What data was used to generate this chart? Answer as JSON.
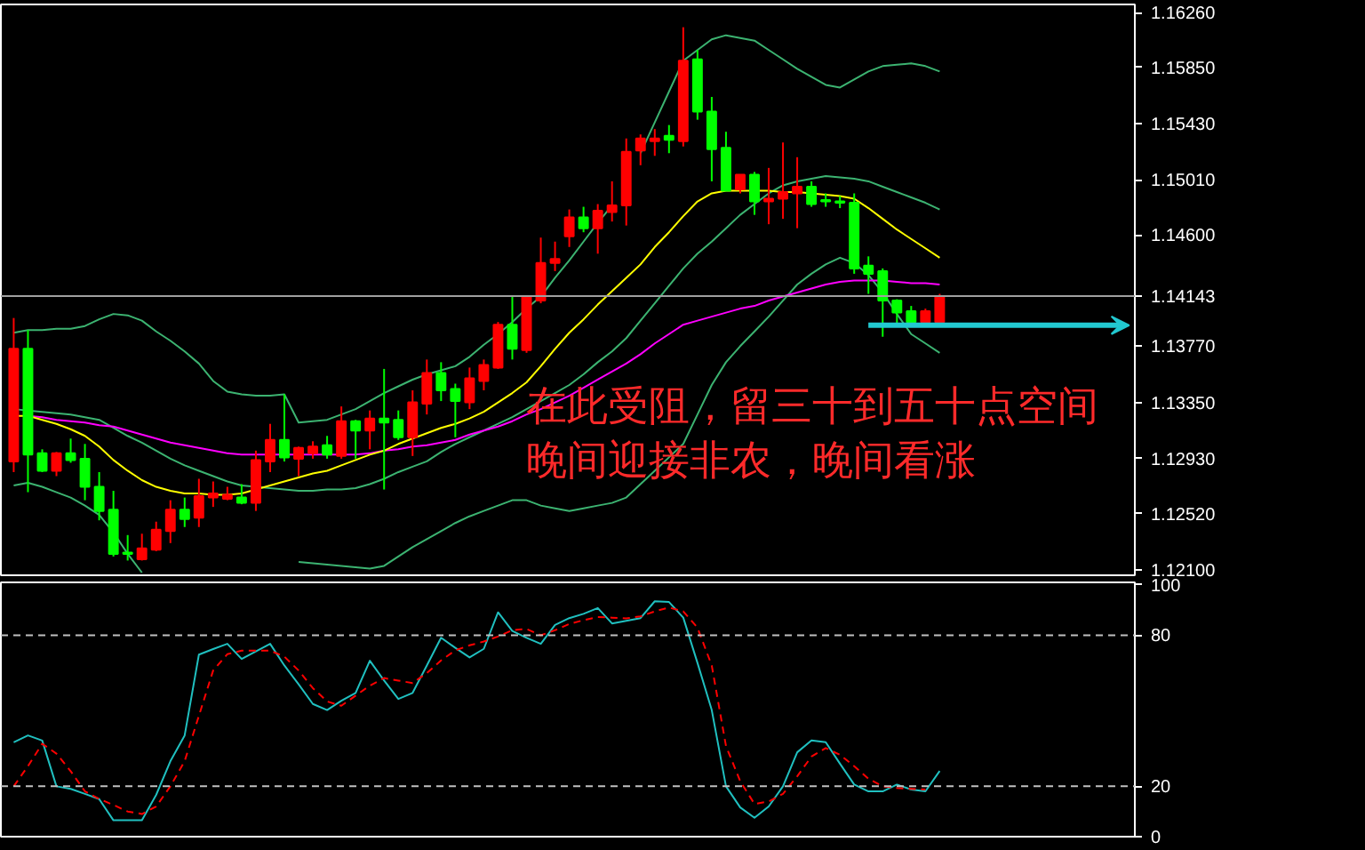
{
  "chart_data": [
    {
      "type": "candlestick",
      "categories": [
        null,
        null,
        null,
        null,
        null,
        null,
        null,
        null,
        null,
        null,
        null,
        null,
        null,
        null,
        null,
        null,
        null,
        null,
        null,
        null,
        null,
        null,
        null,
        null,
        null,
        null,
        null,
        null,
        null,
        null,
        null,
        null,
        null,
        null,
        null,
        null,
        null,
        null,
        null,
        null,
        null,
        null,
        null,
        null,
        null,
        null,
        null,
        null,
        null,
        null,
        null,
        null,
        null,
        null,
        null,
        null,
        null,
        null,
        null,
        null,
        null,
        null,
        null,
        null,
        null,
        null,
        null,
        null,
        null,
        null,
        null,
        null,
        null,
        null,
        null,
        null,
        null,
        null,
        null
      ],
      "ohlc": [
        [
          1.1291,
          1.1398,
          1.1283,
          1.1375
        ],
        [
          1.1375,
          1.1389,
          1.1268,
          1.1296
        ],
        [
          1.1297,
          1.13,
          1.1283,
          1.1284
        ],
        [
          1.1284,
          1.1298,
          1.128,
          1.1297
        ],
        [
          1.1297,
          1.1308,
          1.129,
          1.1292
        ],
        [
          1.1293,
          1.1304,
          1.1262,
          1.1272
        ],
        [
          1.1272,
          1.1283,
          1.1247,
          1.1254
        ],
        [
          1.1255,
          1.1269,
          1.122,
          1.1222
        ],
        [
          1.1223,
          1.1236,
          1.1217,
          1.1222
        ],
        [
          1.1218,
          1.1237,
          1.1217,
          1.1226
        ],
        [
          1.1225,
          1.1246,
          1.1224,
          1.124
        ],
        [
          1.1239,
          1.1262,
          1.123,
          1.1255
        ],
        [
          1.1255,
          1.1264,
          1.1242,
          1.1248
        ],
        [
          1.1249,
          1.1278,
          1.1242,
          1.1265
        ],
        [
          1.1264,
          1.1276,
          1.1257,
          1.1267
        ],
        [
          1.1263,
          1.1272,
          1.1262,
          1.1266
        ],
        [
          1.1264,
          1.1274,
          1.1259,
          1.126
        ],
        [
          1.126,
          1.1299,
          1.1254,
          1.1292
        ],
        [
          1.1291,
          1.1319,
          1.1283,
          1.1307
        ],
        [
          1.1307,
          1.1341,
          1.1291,
          1.1294
        ],
        [
          1.1293,
          1.1302,
          1.128,
          1.1301
        ],
        [
          1.1297,
          1.1306,
          1.1293,
          1.1302
        ],
        [
          1.1303,
          1.131,
          1.1293,
          1.1296
        ],
        [
          1.1295,
          1.1332,
          1.1293,
          1.1321
        ],
        [
          1.1321,
          1.1322,
          1.1293,
          1.1314
        ],
        [
          1.1314,
          1.1329,
          1.13,
          1.1323
        ],
        [
          1.1323,
          1.136,
          1.127,
          1.132
        ],
        [
          1.1322,
          1.1329,
          1.1307,
          1.1309
        ],
        [
          1.1309,
          1.1344,
          1.1295,
          1.1335
        ],
        [
          1.1334,
          1.1367,
          1.1326,
          1.1357
        ],
        [
          1.1357,
          1.1365,
          1.1336,
          1.1344
        ],
        [
          1.1345,
          1.1349,
          1.1309,
          1.1336
        ],
        [
          1.1335,
          1.1361,
          1.133,
          1.1353
        ],
        [
          1.1351,
          1.1367,
          1.1344,
          1.1363
        ],
        [
          1.1361,
          1.1395,
          1.136,
          1.1393
        ],
        [
          1.1393,
          1.1414,
          1.1367,
          1.1375
        ],
        [
          1.1374,
          1.1415,
          1.1372,
          1.1414
        ],
        [
          1.1411,
          1.1458,
          1.1409,
          1.1439
        ],
        [
          1.1439,
          1.1455,
          1.1433,
          1.1442
        ],
        [
          1.1459,
          1.1479,
          1.1451,
          1.1473
        ],
        [
          1.1473,
          1.1481,
          1.1462,
          1.1465
        ],
        [
          1.1465,
          1.1483,
          1.1446,
          1.1478
        ],
        [
          1.1477,
          1.15,
          1.147,
          1.1482
        ],
        [
          1.1482,
          1.1532,
          1.1467,
          1.1522
        ],
        [
          1.1523,
          1.1535,
          1.1512,
          1.1532
        ],
        [
          1.153,
          1.1539,
          1.1519,
          1.1532
        ],
        [
          1.1534,
          1.1542,
          1.1521,
          1.1531
        ],
        [
          1.153,
          1.1615,
          1.1526,
          1.159
        ],
        [
          1.1591,
          1.1598,
          1.1546,
          1.1552
        ],
        [
          1.1552,
          1.1563,
          1.15,
          1.1524
        ],
        [
          1.1525,
          1.1537,
          1.1493,
          1.1493
        ],
        [
          1.1494,
          1.1505,
          1.1491,
          1.1505
        ],
        [
          1.1505,
          1.1507,
          1.1475,
          1.1485
        ],
        [
          1.1485,
          1.151,
          1.1468,
          1.1487
        ],
        [
          1.1487,
          1.1529,
          1.1472,
          1.1492
        ],
        [
          1.1491,
          1.1518,
          1.1465,
          1.1496
        ],
        [
          1.1496,
          1.15,
          1.1481,
          1.1483
        ],
        [
          1.1486,
          1.1491,
          1.1481,
          1.1485
        ],
        [
          1.1485,
          1.1489,
          1.148,
          1.1484
        ],
        [
          1.1484,
          1.1491,
          1.1431,
          1.1435
        ],
        [
          1.1437,
          1.1444,
          1.1416,
          1.1431
        ],
        [
          1.1433,
          1.1435,
          1.1384,
          1.1411
        ],
        [
          1.1411,
          1.1412,
          1.1393,
          1.1402
        ],
        [
          1.1403,
          1.1407,
          1.1392,
          1.1395
        ],
        [
          1.1395,
          1.1405,
          1.1394,
          1.1403
        ],
        [
          1.1395,
          1.1416,
          1.1394,
          1.1414
        ],
        null,
        null,
        null,
        null,
        null,
        null,
        null,
        null,
        null,
        null,
        null,
        null,
        null
      ],
      "colors": [
        "#ff0000",
        "#00ff00",
        "#00ff00",
        "#ff0000",
        "#00ff00",
        "#00ff00",
        "#00ff00",
        "#00ff00",
        "#00ff00",
        "#ff0000",
        "#ff0000",
        "#ff0000",
        "#00ff00",
        "#ff0000",
        "#ff0000",
        "#ff0000",
        "#00ff00",
        "#ff0000",
        "#ff0000",
        "#00ff00",
        "#ff0000",
        "#ff0000",
        "#00ff00",
        "#ff0000",
        "#00ff00",
        "#ff0000",
        "#00ff00",
        "#00ff00",
        "#ff0000",
        "#ff0000",
        "#00ff00",
        "#00ff00",
        "#ff0000",
        "#ff0000",
        "#ff0000",
        "#00ff00",
        "#ff0000",
        "#ff0000",
        "#ff0000",
        "#ff0000",
        "#00ff00",
        "#ff0000",
        "#ff0000",
        "#ff0000",
        "#ff0000",
        "#ff0000",
        "#00ff00",
        "#ff0000",
        "#00ff00",
        "#00ff00",
        "#00ff00",
        "#ff0000",
        "#00ff00",
        "#ff0000",
        "#ff0000",
        "#ff0000",
        "#00ff00",
        "#00ff00",
        "#00ff00",
        "#00ff00",
        "#00ff00",
        "#00ff00",
        "#00ff00",
        "#00ff00",
        "#ff0000",
        "#ff0000",
        null,
        null,
        null,
        null,
        null,
        null,
        null,
        null,
        null,
        null,
        null,
        null,
        null
      ],
      "series": [
        {
          "type": "line",
          "color": "#3cb371",
          "values": [
            1.1387,
            1.1389,
            1.1389,
            1.139,
            1.139,
            1.1392,
            1.1397,
            1.1401,
            1.14,
            1.1396,
            1.1388,
            1.1381,
            1.1373,
            1.1364,
            1.1351,
            1.1343,
            1.1341,
            1.134,
            1.134,
            1.1341,
            1.132,
            1.1321,
            1.1322,
            1.1326,
            1.133,
            1.1336,
            1.1342,
            1.1347,
            1.1352,
            1.1356,
            1.1359,
            1.1362,
            1.1369,
            1.1378,
            1.1386,
            1.1395,
            1.1405,
            1.1414,
            1.1428,
            1.1441,
            1.1455,
            1.1469,
            1.1482,
            null,
            1.1521,
            1.1544,
            1.1567,
            1.159,
            1.1598,
            1.1606,
            1.1609,
            1.1607,
            1.1605,
            1.1598,
            1.1591,
            1.1584,
            1.1578,
            1.1572,
            1.157,
            1.1576,
            1.1582,
            1.1586,
            1.1587,
            1.1588,
            1.1586,
            1.1582,
            null,
            null,
            null,
            null,
            null,
            null,
            null,
            null,
            null,
            null,
            null,
            null,
            null
          ]
        },
        {
          "type": "line",
          "color": "#3cb371",
          "values": [
            1.133,
            1.1329,
            1.1328,
            1.1327,
            1.1326,
            1.1324,
            1.1322,
            1.1316,
            1.131,
            1.1305,
            1.1299,
            1.1293,
            1.1288,
            1.1284,
            1.128,
            1.1276,
            1.1273,
            1.1272,
            1.1271,
            1.127,
            1.1269,
            1.1269,
            1.127,
            1.127,
            1.1271,
            1.1274,
            1.1278,
            1.1283,
            1.1287,
            1.1291,
            1.1298,
            1.1304,
            1.1309,
            1.1314,
            1.1319,
            1.1324,
            1.133,
            1.1336,
            1.1342,
            1.1348,
            1.1356,
            1.1365,
            1.1373,
            1.1383,
            1.1396,
            1.1409,
            1.1422,
            1.1435,
            1.1446,
            1.1455,
            1.1465,
            1.1475,
            1.1483,
            1.1491,
            1.1497,
            1.15,
            1.1502,
            1.1504,
            1.1503,
            1.1502,
            1.15,
            1.1496,
            1.1492,
            1.1488,
            1.1484,
            1.1479,
            null,
            null,
            null,
            null,
            null,
            null,
            null,
            null,
            null,
            null,
            null,
            null,
            null
          ]
        },
        {
          "type": "line",
          "color": "#3cb371",
          "values": [
            1.1273,
            1.1275,
            1.1272,
            1.1268,
            1.1264,
            1.1258,
            1.1251,
            1.1238,
            1.1222,
            1.1208,
            null,
            null,
            null,
            null,
            null,
            null,
            null,
            null,
            null,
            null,
            1.1216,
            1.1215,
            1.1214,
            1.1213,
            1.1212,
            1.1211,
            1.1213,
            1.122,
            1.1227,
            1.1233,
            1.1239,
            1.1245,
            1.125,
            1.1254,
            1.1258,
            1.1262,
            1.1262,
            1.1258,
            1.1256,
            1.1254,
            1.1256,
            1.1258,
            1.126,
            1.1264,
            1.1274,
            1.1284,
            1.1294,
            1.1304,
            1.1326,
            1.1348,
            1.1365,
            1.1377,
            1.1388,
            1.1399,
            1.1411,
            1.1423,
            1.1431,
            1.1438,
            1.1443,
            1.1439,
            1.143,
            1.1417,
            1.1401,
            1.1386,
            1.1379,
            1.1372,
            null,
            null,
            null,
            null,
            null,
            null,
            null,
            null,
            null,
            null,
            null,
            null,
            null
          ]
        },
        {
          "type": "line",
          "color": "#ff00ff",
          "values": [
            null,
            1.1325,
            1.1324,
            1.1322,
            1.1321,
            1.132,
            1.1318,
            1.1317,
            1.1314,
            1.1311,
            1.1308,
            1.1305,
            1.1303,
            1.1301,
            1.1299,
            1.1297,
            1.1296,
            1.1296,
            1.1296,
            1.1296,
            1.1296,
            1.1296,
            1.1296,
            1.1296,
            1.1296,
            1.1297,
            1.1299,
            1.13,
            1.1302,
            1.1303,
            1.1305,
            1.1307,
            1.1311,
            1.1314,
            1.1317,
            1.1321,
            1.1326,
            1.133,
            1.1335,
            1.134,
            1.1346,
            1.1352,
            1.1358,
            1.1364,
            1.1371,
            1.1379,
            1.1386,
            1.1393,
            1.1396,
            1.1399,
            1.1402,
            1.1405,
            1.1407,
            1.1411,
            1.1414,
            1.1417,
            1.142,
            1.1423,
            1.1425,
            1.1426,
            1.1426,
            1.1426,
            1.1425,
            1.1424,
            1.1424,
            1.1423,
            null,
            null,
            null,
            null,
            null,
            null,
            null,
            null,
            null,
            null,
            null,
            null,
            null
          ]
        },
        {
          "type": "line",
          "color": "#ffff00",
          "values": [
            1.1325,
            1.1325,
            1.1322,
            1.1319,
            1.1315,
            1.131,
            1.1302,
            1.1292,
            1.1284,
            1.1277,
            1.1272,
            1.1269,
            1.1267,
            1.1267,
            1.1266,
            1.1266,
            1.1267,
            1.127,
            1.1273,
            1.1276,
            1.1279,
            1.1282,
            1.1284,
            1.1288,
            1.1292,
            1.1296,
            1.1299,
            1.1304,
            1.1308,
            1.1312,
            1.1316,
            1.1319,
            1.1323,
            1.1328,
            1.1335,
            1.1342,
            1.135,
            1.1362,
            1.1375,
            1.1387,
            1.1397,
            1.1408,
            1.1418,
            1.1428,
            1.1438,
            1.1451,
            1.1462,
            1.1474,
            1.1485,
            1.1491,
            1.1493,
            1.1493,
            1.1493,
            1.1493,
            1.1492,
            1.1492,
            1.1491,
            1.149,
            1.1489,
            1.1487,
            1.148,
            1.1472,
            1.1464,
            1.1457,
            1.145,
            1.1443,
            null,
            null,
            null,
            null,
            null,
            null,
            null,
            null,
            null,
            null,
            null,
            null,
            null
          ]
        }
      ],
      "ylim": [
        1.1206,
        1.1632
      ],
      "yticks": [
        {
          "value": 1.1626,
          "label": "1.16260"
        },
        {
          "value": 1.1585,
          "label": "1.15850"
        },
        {
          "value": 1.1543,
          "label": "1.15430"
        },
        {
          "value": 1.1501,
          "label": "1.15010"
        },
        {
          "value": 1.146,
          "label": "1.14600"
        },
        {
          "value": 1.1377,
          "label": "1.13770"
        },
        {
          "value": 1.1335,
          "label": "1.13350"
        },
        {
          "value": 1.1293,
          "label": "1.12930"
        },
        {
          "value": 1.1252,
          "label": "1.12520"
        },
        {
          "value": 1.121,
          "label": "1.12100"
        }
      ],
      "tick_labels": "y",
      "ref_lines": [
        {
          "axis": "y",
          "value": 1.14143,
          "label": "1.14143",
          "color": "#a0a0a0"
        }
      ],
      "annotations": [
        "在此受阻，留三十到五十点空间",
        "晚间迎接非农，晚间看涨"
      ]
    },
    {
      "type": "line",
      "categories": [
        null,
        null,
        null,
        null,
        null,
        null,
        null,
        null,
        null,
        null,
        null,
        null,
        null,
        null,
        null,
        null,
        null,
        null,
        null,
        null,
        null,
        null,
        null,
        null,
        null,
        null,
        null,
        null,
        null,
        null,
        null,
        null,
        null,
        null,
        null,
        null,
        null,
        null,
        null,
        null,
        null,
        null,
        null,
        null,
        null,
        null,
        null,
        null,
        null,
        null,
        null,
        null,
        null,
        null,
        null,
        null,
        null,
        null,
        null,
        null,
        null,
        null,
        null,
        null,
        null,
        null,
        null,
        null,
        null,
        null,
        null,
        null,
        null,
        null,
        null,
        null,
        null,
        null,
        null
      ],
      "series": [
        {
          "color": "#20c0c0",
          "values": [
            37.5,
            40.2,
            38.2,
            20,
            19,
            17,
            14.9,
            6.5,
            6.5,
            6.5,
            16.6,
            30,
            40.2,
            72.3,
            74.5,
            76.6,
            70.6,
            73.6,
            76.6,
            68,
            60.5,
            52.7,
            50.3,
            54,
            57.1,
            69.9,
            62,
            54.7,
            57.1,
            68,
            79,
            75,
            71.2,
            74.6,
            89.1,
            81.7,
            79,
            76.6,
            84.1,
            86.8,
            88.5,
            90.8,
            84.7,
            85.7,
            86.8,
            93.5,
            93.2,
            87,
            69,
            50.3,
            20,
            11.6,
            7.5,
            12,
            20,
            33.5,
            38.2,
            37.5,
            29,
            20.7,
            18,
            18,
            20.7,
            18.7,
            18,
            26.1,
            null,
            null,
            null,
            null,
            null,
            null,
            null,
            null,
            null,
            null,
            null,
            null,
            null
          ]
        },
        {
          "color": "#ff0000",
          "line_style": "dashed",
          "values": [
            20,
            28,
            36.9,
            33,
            26,
            18,
            15,
            12.6,
            10,
            9,
            12,
            20,
            30,
            48,
            66,
            72.5,
            73.9,
            73.9,
            73.9,
            71.5,
            66,
            59,
            53.7,
            52,
            56,
            60,
            63,
            62,
            61,
            65,
            70,
            74,
            76,
            77.5,
            79.5,
            82,
            82.5,
            80,
            82,
            84.5,
            86,
            87.2,
            87,
            86.7,
            87.5,
            89.5,
            91,
            89.5,
            83,
            68,
            36,
            22,
            13,
            14,
            17,
            24,
            31.8,
            35.2,
            32.5,
            28,
            23,
            20,
            19.3,
            19,
            18.7,
            null,
            null,
            null,
            null,
            null,
            null,
            null,
            null,
            null,
            null,
            null,
            null,
            null,
            null
          ]
        }
      ],
      "ylim": [
        0,
        101
      ],
      "yticks": [
        100,
        80,
        20,
        0
      ],
      "tick_labels": "y",
      "ref_lines": [
        {
          "axis": "y",
          "value": 80,
          "color": "#c0c0c0",
          "line_style": "dashed"
        },
        {
          "axis": "y",
          "value": 20,
          "color": "#c0c0c0",
          "line_style": "dashed"
        }
      ]
    }
  ]
}
